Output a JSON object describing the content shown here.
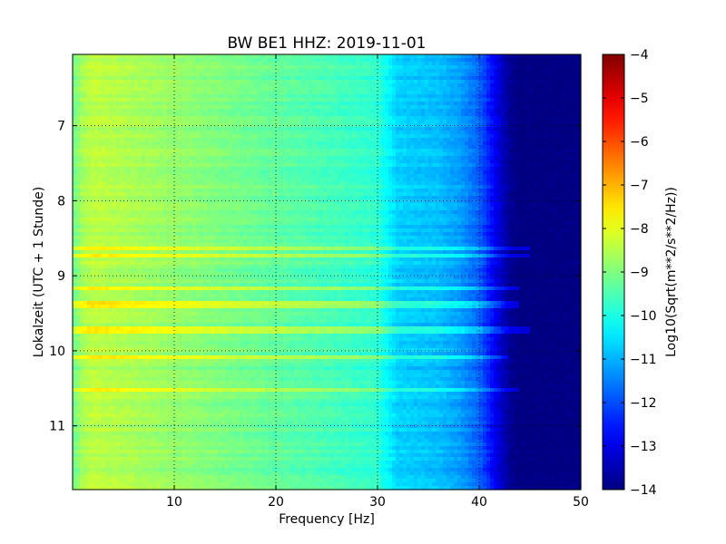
{
  "chart_data": {
    "type": "heatmap",
    "title": "BW BE1 HHZ: 2019-11-01",
    "xlabel": "Frequency [Hz]",
    "ylabel": "Lokalzeit (UTC + 1 Stunde)",
    "xlim": [
      0,
      50
    ],
    "ylim": [
      11.85,
      6.05
    ],
    "y_inverted": true,
    "xticks": [
      10,
      20,
      30,
      40,
      50
    ],
    "yticks": [
      7,
      8,
      9,
      10,
      11
    ],
    "grid": true,
    "colormap": "jet",
    "colorbar": {
      "label": "Log10(Sqrt(m**2/s**2/Hz))",
      "range": [
        -14,
        -4
      ],
      "ticks": [
        -4,
        -5,
        -6,
        -7,
        -8,
        -9,
        -10,
        -11,
        -12,
        -13,
        -14
      ]
    },
    "spectral_profile": {
      "frequency_hz": [
        0,
        1,
        2,
        4,
        8,
        12,
        16,
        20,
        24,
        28,
        30,
        31,
        32,
        34,
        36,
        38,
        40,
        41,
        42,
        43,
        44,
        46,
        50
      ],
      "log10_amplitude": [
        -9.2,
        -8.6,
        -8.4,
        -8.5,
        -8.7,
        -8.9,
        -9.1,
        -9.3,
        -9.5,
        -9.7,
        -9.8,
        -10.3,
        -10.7,
        -10.8,
        -10.9,
        -11.2,
        -11.8,
        -12.5,
        -13.2,
        -13.8,
        -14.0,
        -14.0,
        -14.0
      ]
    },
    "bright_bands": [
      {
        "time": 8.65,
        "max_freq_hz": 45
      },
      {
        "time": 8.75,
        "max_freq_hz": 45
      },
      {
        "time": 9.15,
        "max_freq_hz": 44
      },
      {
        "time": 9.38,
        "max_freq_hz": 44
      },
      {
        "time": 9.72,
        "max_freq_hz": 45
      },
      {
        "time": 10.1,
        "max_freq_hz": 43
      },
      {
        "time": 10.52,
        "max_freq_hz": 44
      }
    ]
  }
}
